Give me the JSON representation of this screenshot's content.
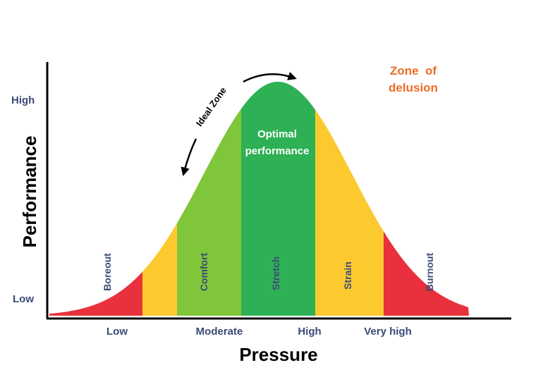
{
  "chart_data": {
    "type": "area",
    "xlabel": "Pressure",
    "ylabel": "Performance",
    "x_ticks": [
      "Low",
      "Moderate",
      "High",
      "Very high"
    ],
    "y_ticks": [
      "Low",
      "High"
    ],
    "curve_shape": "bell",
    "zones": [
      {
        "name": "Boreout",
        "color": "#e8313c"
      },
      {
        "name": "",
        "color": "#fcc92f"
      },
      {
        "name": "Comfort",
        "color": "#7fc63a"
      },
      {
        "name": "Stretch",
        "color": "#2eb054"
      },
      {
        "name": "Strain",
        "color": "#fcc92f"
      },
      {
        "name": "Burnout",
        "color": "#e8313c"
      }
    ],
    "annotations": {
      "optimal_line1": "Optimal",
      "optimal_line2": "performance",
      "ideal_zone": "Ideal Zone",
      "delusion_line1": "Zone  of",
      "delusion_line2": "delusion"
    },
    "grid": false
  }
}
